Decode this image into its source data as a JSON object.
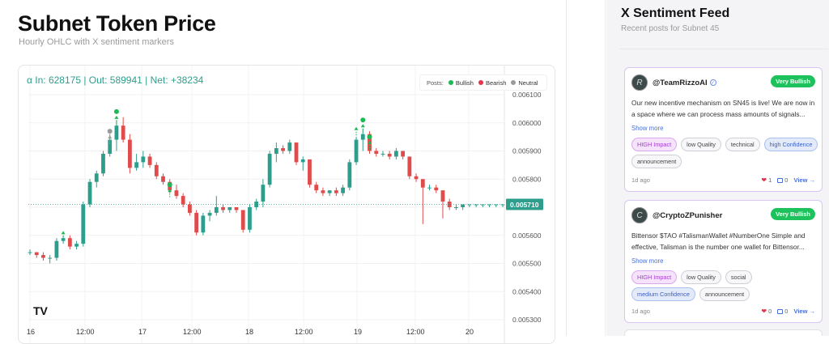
{
  "chart": {
    "title": "Subnet Token Price",
    "subtitle": "Hourly OHLC with X sentiment markers",
    "flow_text": "α In: 628175 | Out: 589941 | Net: +38234",
    "legend": {
      "label": "Posts:",
      "items": [
        {
          "name": "Bullish",
          "color": "#1db954"
        },
        {
          "name": "Bearish",
          "color": "#e3344b"
        },
        {
          "name": "Neutral",
          "color": "#9a9a9a"
        }
      ]
    },
    "last_price_label": "0.005710",
    "logo": "TV"
  },
  "chart_data": {
    "type": "candlestick",
    "y_ticks": [
      "0.006100",
      "0.006000",
      "0.005900",
      "0.005800",
      "0.005700",
      "0.005600",
      "0.005500",
      "0.005400",
      "0.005300"
    ],
    "x_ticks": [
      "16",
      "12:00",
      "17",
      "12:00",
      "18",
      "12:00",
      "19",
      "12:00",
      "20"
    ],
    "ylim": [
      0.00529,
      0.00611
    ],
    "last_price": 0.00571,
    "candles": [
      [
        0.00554,
        0.00555,
        0.00553,
        0.00554
      ],
      [
        0.00554,
        0.00554,
        0.00552,
        0.00553
      ],
      [
        0.00553,
        0.00554,
        0.00551,
        0.00552
      ],
      [
        0.00552,
        0.00553,
        0.0055,
        0.00552
      ],
      [
        0.00552,
        0.00559,
        0.00551,
        0.00558
      ],
      [
        0.00558,
        0.0056,
        0.00557,
        0.00559
      ],
      [
        0.00559,
        0.0056,
        0.00555,
        0.00556
      ],
      [
        0.00556,
        0.00558,
        0.00555,
        0.00557
      ],
      [
        0.00557,
        0.00572,
        0.00556,
        0.00571
      ],
      [
        0.00571,
        0.0058,
        0.0057,
        0.00579
      ],
      [
        0.00579,
        0.00583,
        0.00577,
        0.00582
      ],
      [
        0.00582,
        0.0059,
        0.00581,
        0.00589
      ],
      [
        0.00589,
        0.00596,
        0.00588,
        0.00594
      ],
      [
        0.00594,
        0.00601,
        0.0059,
        0.00599
      ],
      [
        0.00599,
        0.00602,
        0.00593,
        0.00594
      ],
      [
        0.00594,
        0.00596,
        0.00582,
        0.00584
      ],
      [
        0.00584,
        0.00589,
        0.00583,
        0.00586
      ],
      [
        0.00586,
        0.0059,
        0.00584,
        0.00588
      ],
      [
        0.00588,
        0.00589,
        0.00584,
        0.00585
      ],
      [
        0.00585,
        0.00586,
        0.0058,
        0.00581
      ],
      [
        0.00581,
        0.00582,
        0.00578,
        0.00579
      ],
      [
        0.00579,
        0.0058,
        0.00575,
        0.00576
      ],
      [
        0.00576,
        0.00578,
        0.00573,
        0.00574
      ],
      [
        0.00574,
        0.00575,
        0.0057,
        0.00571
      ],
      [
        0.00571,
        0.00572,
        0.00567,
        0.00568
      ],
      [
        0.00568,
        0.00569,
        0.0056,
        0.00561
      ],
      [
        0.00561,
        0.00568,
        0.0056,
        0.00567
      ],
      [
        0.00567,
        0.00569,
        0.00565,
        0.00568
      ],
      [
        0.00568,
        0.00574,
        0.00567,
        0.0057
      ],
      [
        0.0057,
        0.00571,
        0.00568,
        0.00569
      ],
      [
        0.00569,
        0.0057,
        0.00568,
        0.0057
      ],
      [
        0.0057,
        0.0057,
        0.00568,
        0.00569
      ],
      [
        0.00569,
        0.00569,
        0.00561,
        0.00562
      ],
      [
        0.00562,
        0.00571,
        0.00561,
        0.0057
      ],
      [
        0.0057,
        0.00573,
        0.00569,
        0.00572
      ],
      [
        0.00572,
        0.0058,
        0.0057,
        0.00578
      ],
      [
        0.00578,
        0.0059,
        0.00577,
        0.00589
      ],
      [
        0.00589,
        0.00593,
        0.00586,
        0.00591
      ],
      [
        0.00591,
        0.00592,
        0.00589,
        0.0059
      ],
      [
        0.0059,
        0.00594,
        0.00589,
        0.00593
      ],
      [
        0.00593,
        0.00593,
        0.00585,
        0.00586
      ],
      [
        0.00586,
        0.00588,
        0.00583,
        0.00587
      ],
      [
        0.00587,
        0.00587,
        0.00577,
        0.00578
      ],
      [
        0.00578,
        0.00579,
        0.00575,
        0.00576
      ],
      [
        0.00576,
        0.00577,
        0.00574,
        0.00575
      ],
      [
        0.00575,
        0.00576,
        0.00574,
        0.00576
      ],
      [
        0.00576,
        0.00577,
        0.00574,
        0.00575
      ],
      [
        0.00575,
        0.00578,
        0.00574,
        0.00577
      ],
      [
        0.00577,
        0.00587,
        0.00576,
        0.00586
      ],
      [
        0.00586,
        0.00595,
        0.00585,
        0.00594
      ],
      [
        0.00594,
        0.00598,
        0.0059,
        0.00596
      ],
      [
        0.00596,
        0.00597,
        0.00589,
        0.0059
      ],
      [
        0.0059,
        0.00591,
        0.00588,
        0.00589
      ],
      [
        0.00589,
        0.0059,
        0.00588,
        0.00589
      ],
      [
        0.00589,
        0.0059,
        0.00587,
        0.00588
      ],
      [
        0.00588,
        0.00591,
        0.00587,
        0.0059
      ],
      [
        0.0059,
        0.0059,
        0.00587,
        0.00588
      ],
      [
        0.00588,
        0.00588,
        0.0058,
        0.00581
      ],
      [
        0.00581,
        0.00582,
        0.00579,
        0.0058
      ],
      [
        0.0058,
        0.0058,
        0.00564,
        0.00577
      ],
      [
        0.00577,
        0.00578,
        0.00576,
        0.00577
      ],
      [
        0.00577,
        0.00578,
        0.00575,
        0.00576
      ],
      [
        0.00576,
        0.00576,
        0.00566,
        0.00572
      ],
      [
        0.00572,
        0.00573,
        0.00569,
        0.0057
      ],
      [
        0.0057,
        0.00571,
        0.00569,
        0.0057
      ],
      [
        0.0057,
        0.00571,
        0.00569,
        0.00571
      ],
      [
        0.00571,
        0.00571,
        0.0057,
        0.00571
      ],
      [
        0.00571,
        0.00571,
        0.0057,
        0.00571
      ],
      [
        0.00571,
        0.00571,
        0.0057,
        0.00571
      ],
      [
        0.00571,
        0.00571,
        0.0057,
        0.00571
      ],
      [
        0.00571,
        0.00571,
        0.0057,
        0.00571
      ],
      [
        0.00571,
        0.00571,
        0.0057,
        0.00571
      ]
    ],
    "markers": [
      {
        "candle": 5,
        "price": 0.00563,
        "sentiment": "Bullish",
        "dot": false
      },
      {
        "candle": 13,
        "price": 0.00604,
        "sentiment": "Bullish",
        "dot": true
      },
      {
        "candle": 12,
        "price": 0.00597,
        "sentiment": "Neutral",
        "dot": true
      },
      {
        "candle": 21,
        "price": 0.00578,
        "sentiment": "Bullish",
        "dot": true
      },
      {
        "candle": 49,
        "price": 0.006,
        "sentiment": "Bullish",
        "dot": false
      },
      {
        "candle": 50,
        "price": 0.00601,
        "sentiment": "Bullish",
        "dot": true
      },
      {
        "candle": 51,
        "price": 0.00595,
        "sentiment": "Bullish",
        "dot": true
      }
    ]
  },
  "feed": {
    "title": "X Sentiment Feed",
    "subtitle": "Recent posts for Subnet 45",
    "posts": [
      {
        "handle": "@TeamRizzoAI",
        "avatar_letter": "R",
        "badge": "Very Bullish",
        "text": "Our new incentive mechanism on SN45 is live! We are now in a space where we can process mass amounts of signals...",
        "show_more": "Show more",
        "tags": [
          {
            "label": "HIGH Impact",
            "kind": "high"
          },
          {
            "label": "low Quality",
            "kind": "plain"
          },
          {
            "label": "technical",
            "kind": "plain"
          },
          {
            "label": "high Confidence",
            "kind": "conf"
          },
          {
            "label": "announcement",
            "kind": "plain"
          }
        ],
        "time": "1d ago",
        "likes": "1",
        "comments": "0",
        "view": "View →"
      },
      {
        "handle": "@CryptoZPunisher",
        "avatar_letter": "C",
        "badge": "Very Bullish",
        "text": "Bittensor $TAO #TalismanWallet #NumberOne Simple and effective, Talisman is the number one wallet for Bittensor...",
        "show_more": "Show more",
        "tags": [
          {
            "label": "HIGH Impact",
            "kind": "high"
          },
          {
            "label": "low Quality",
            "kind": "plain"
          },
          {
            "label": "social",
            "kind": "plain"
          },
          {
            "label": "medium Confidence",
            "kind": "conf"
          },
          {
            "label": "announcement",
            "kind": "plain"
          }
        ],
        "time": "1d ago",
        "likes": "0",
        "comments": "0",
        "view": "View →"
      }
    ]
  }
}
